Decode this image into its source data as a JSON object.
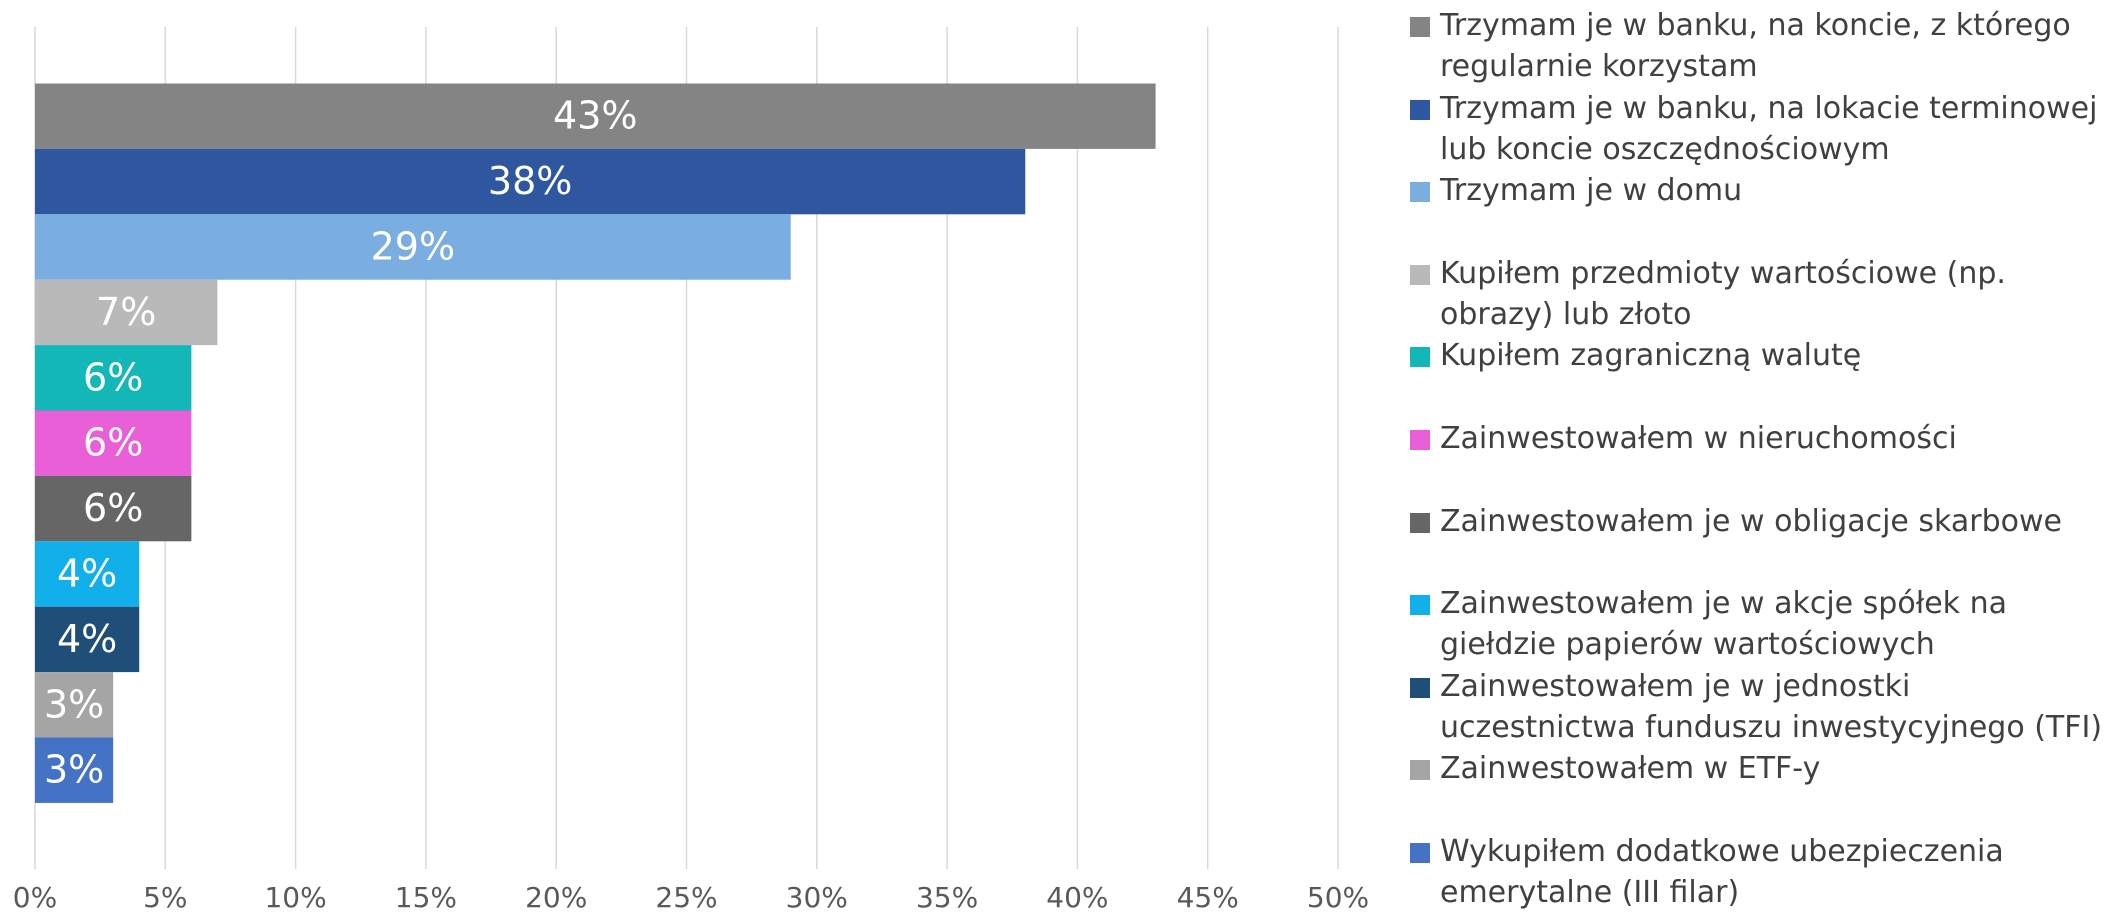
{
  "chart_data": {
    "type": "bar",
    "orientation": "horizontal",
    "grid": true,
    "legend": "right",
    "xlim": [
      0,
      50
    ],
    "xticks": [
      {
        "value": 0,
        "label": "0%"
      },
      {
        "value": 5,
        "label": "5%"
      },
      {
        "value": 10,
        "label": "10%"
      },
      {
        "value": 15,
        "label": "15%"
      },
      {
        "value": 20,
        "label": "20%"
      },
      {
        "value": 25,
        "label": "25%"
      },
      {
        "value": 30,
        "label": "30%"
      },
      {
        "value": 35,
        "label": "35%"
      },
      {
        "value": 40,
        "label": "40%"
      },
      {
        "value": 45,
        "label": "45%"
      },
      {
        "value": 50,
        "label": "50%"
      }
    ],
    "series": [
      {
        "name": "Trzymam je w banku, na koncie, z którego regularnie korzystam",
        "color": "#848484",
        "values": [
          43
        ],
        "value_labels": [
          "43%"
        ]
      },
      {
        "name": "Trzymam je w banku, na lokacie terminowej lub koncie oszczędnościowym",
        "color": "#2f57a0",
        "values": [
          38
        ],
        "value_labels": [
          "38%"
        ]
      },
      {
        "name": "Trzymam je w domu",
        "color": "#7aade0",
        "values": [
          29
        ],
        "value_labels": [
          "29%"
        ]
      },
      {
        "name": "Kupiłem przedmioty wartościowe (np. obrazy) lub złoto",
        "color": "#b9b9b9",
        "values": [
          7
        ],
        "value_labels": [
          "7%"
        ]
      },
      {
        "name": "Kupiłem zagraniczną walutę",
        "color": "#14b7b7",
        "values": [
          6
        ],
        "value_labels": [
          "6%"
        ]
      },
      {
        "name": "Zainwestowałem w nieruchomości",
        "color": "#e95fd8",
        "values": [
          6
        ],
        "value_labels": [
          "6%"
        ]
      },
      {
        "name": "Zainwestowałem je w obligacje skarbowe",
        "color": "#666666",
        "values": [
          6
        ],
        "value_labels": [
          "6%"
        ]
      },
      {
        "name": "Zainwestowałem je w akcje spółek na giełdzie papierów wartościowych",
        "color": "#12b0eb",
        "values": [
          4
        ],
        "value_labels": [
          "4%"
        ]
      },
      {
        "name": "Zainwestowałem je w jednostki uczestnictwa funduszu inwestycyjnego (TFI)",
        "color": "#1f4e79",
        "values": [
          4
        ],
        "value_labels": [
          "4%"
        ]
      },
      {
        "name": "Zainwestowałem w ETF-y",
        "color": "#a5a5a5",
        "values": [
          3
        ],
        "value_labels": [
          "3%"
        ]
      },
      {
        "name": "Wykupiłem dodatkowe ubezpieczenia emerytalne (III filar)",
        "color": "#4472c4",
        "values": [
          3
        ],
        "value_labels": [
          "3%"
        ]
      }
    ]
  }
}
